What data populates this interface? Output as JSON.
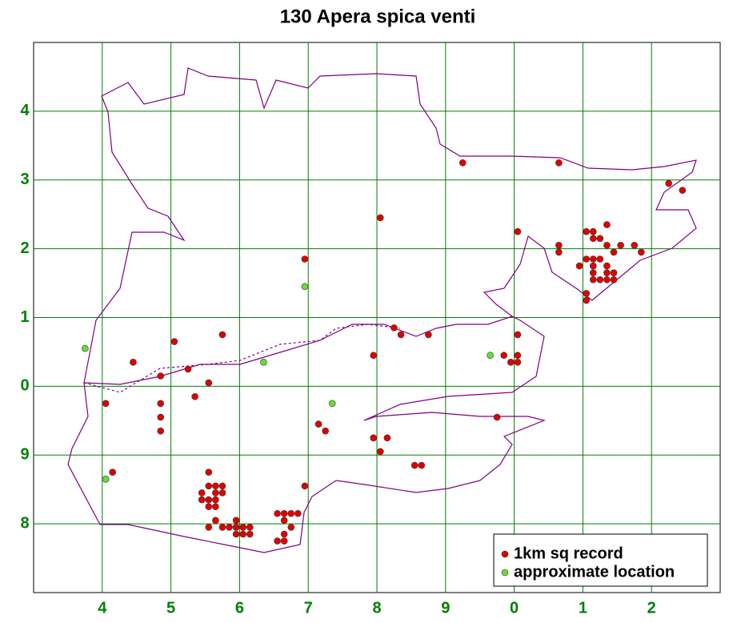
{
  "chart_data": {
    "type": "scatter",
    "title": "130 Apera spica venti",
    "xlim": [
      3,
      13
    ],
    "ylim": [
      7,
      15
    ],
    "xticks": [
      4,
      5,
      6,
      7,
      8,
      9,
      {
        "value": 10,
        "label": "0"
      },
      {
        "value": 11,
        "label": "1"
      },
      {
        "value": 12,
        "label": "2"
      }
    ],
    "yticks": [
      8,
      9,
      {
        "value": 10,
        "label": "0"
      },
      {
        "value": 11,
        "label": "1"
      },
      {
        "value": 12,
        "label": "2"
      },
      {
        "value": 13,
        "label": "3"
      },
      {
        "value": 14,
        "label": "4"
      }
    ],
    "grid": true,
    "grid_color": "#008000",
    "tick_color": "#008000",
    "legend": "lower right",
    "series": [
      {
        "name": "1km sq record",
        "color": "#e00000",
        "x": [
          9.25,
          10.65,
          12.25,
          12.45,
          8.05,
          10.05,
          10.65,
          10.65,
          11.05,
          11.15,
          11.15,
          11.25,
          11.35,
          11.35,
          11.55,
          11.75,
          11.45,
          11.85,
          10.95,
          11.05,
          11.15,
          11.25,
          11.15,
          11.15,
          11.35,
          11.15,
          11.25,
          11.35,
          11.45,
          11.35,
          11.45,
          11.05,
          11.05,
          6.95,
          8.25,
          8.35,
          8.75,
          7.95,
          5.05,
          5.75,
          4.45,
          4.85,
          5.25,
          5.55,
          5.35,
          4.05,
          4.85,
          4.85,
          4.85,
          7.15,
          7.25,
          7.95,
          8.15,
          8.05,
          8.55,
          8.65,
          9.75,
          9.85,
          10.05,
          10.05,
          9.95,
          10.05,
          4.15,
          5.55,
          5.55,
          5.65,
          5.75,
          5.45,
          5.65,
          5.75,
          5.45,
          5.55,
          5.65,
          5.55,
          5.65,
          5.65,
          5.55,
          5.75,
          5.85,
          5.95,
          5.95,
          6.05,
          6.15,
          5.95,
          6.05,
          6.15,
          6.95,
          6.55,
          6.65,
          6.75,
          6.85,
          6.65,
          6.75,
          6.65,
          6.55,
          6.65
        ],
        "values": [
          13.25,
          13.25,
          12.95,
          12.85,
          12.45,
          12.25,
          12.05,
          11.95,
          12.25,
          12.25,
          12.15,
          12.15,
          12.35,
          12.05,
          12.05,
          12.05,
          11.95,
          11.95,
          11.75,
          11.85,
          11.85,
          11.85,
          11.75,
          11.65,
          11.75,
          11.55,
          11.55,
          11.55,
          11.55,
          11.65,
          11.65,
          11.35,
          11.25,
          11.85,
          10.85,
          10.75,
          10.75,
          10.45,
          10.65,
          10.75,
          10.35,
          10.15,
          10.25,
          10.05,
          9.85,
          9.75,
          9.75,
          9.55,
          9.35,
          9.45,
          9.35,
          9.25,
          9.25,
          9.05,
          8.85,
          8.85,
          9.55,
          10.45,
          10.75,
          10.45,
          10.35,
          10.35,
          8.75,
          8.75,
          8.55,
          8.55,
          8.55,
          8.45,
          8.45,
          8.45,
          8.35,
          8.35,
          8.35,
          8.25,
          8.25,
          8.05,
          7.95,
          7.95,
          7.95,
          8.05,
          7.95,
          7.95,
          7.95,
          7.85,
          7.85,
          7.85,
          8.55,
          8.15,
          8.15,
          8.15,
          8.15,
          8.05,
          7.95,
          7.85,
          7.75,
          7.75
        ]
      },
      {
        "name": "approximate location",
        "color": "#66dd33",
        "x": [
          3.75,
          6.35,
          6.95,
          7.35,
          9.65,
          4.05
        ],
        "values": [
          10.55,
          10.35,
          11.45,
          9.75,
          10.45,
          8.65
        ]
      }
    ]
  }
}
